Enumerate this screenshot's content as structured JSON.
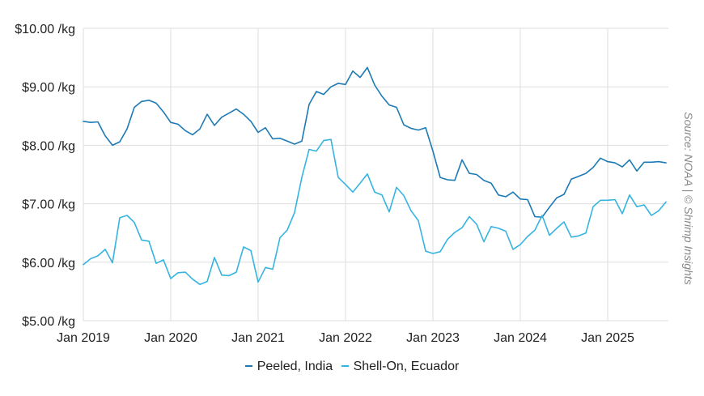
{
  "source_note": "Source: NOAA | © Shrimp Insights",
  "colors": {
    "peeled_india": "#1d7ab5",
    "shell_on_ecuador": "#35b4e0",
    "grid": "#dddddd"
  },
  "chart_data": {
    "type": "line",
    "title": "",
    "xlabel": "",
    "ylabel": "",
    "grid": true,
    "legend_position": "bottom",
    "ylim": [
      5,
      10
    ],
    "yticks": [
      {
        "value": 5,
        "label": "$5.00 /kg"
      },
      {
        "value": 6,
        "label": "$6.00 /kg"
      },
      {
        "value": 7,
        "label": "$7.00 /kg"
      },
      {
        "value": 8,
        "label": "$8.00 /kg"
      },
      {
        "value": 9,
        "label": "$9.00 /kg"
      },
      {
        "value": 10,
        "label": "$10.00 /kg"
      }
    ],
    "x_start": "Jan 2019",
    "x_end": "Aug 2025",
    "xticks": [
      "Jan 2019",
      "Jan 2020",
      "Jan 2021",
      "Jan 2022",
      "Jan 2023",
      "Jan 2024",
      "Jan 2025"
    ],
    "series": [
      {
        "name": "Peeled, India",
        "values": [
          8.41,
          8.39,
          8.4,
          8.16,
          8.0,
          8.06,
          8.28,
          8.65,
          8.75,
          8.77,
          8.72,
          8.57,
          8.39,
          8.36,
          8.25,
          8.18,
          8.28,
          8.53,
          8.34,
          8.48,
          8.55,
          8.62,
          8.53,
          8.41,
          8.22,
          8.3,
          8.11,
          8.12,
          8.07,
          8.02,
          8.07,
          8.7,
          8.92,
          8.87,
          9.0,
          9.06,
          9.04,
          9.27,
          9.16,
          9.33,
          9.03,
          8.84,
          8.69,
          8.65,
          8.35,
          8.29,
          8.26,
          8.3,
          7.9,
          7.45,
          7.41,
          7.4,
          7.75,
          7.52,
          7.5,
          7.4,
          7.35,
          7.15,
          7.12,
          7.2,
          7.08,
          7.07,
          6.78,
          6.77,
          6.94,
          7.1,
          7.16,
          7.42,
          7.47,
          7.52,
          7.62,
          7.78,
          7.72,
          7.7,
          7.63,
          7.75,
          7.56,
          7.71,
          7.71,
          7.72,
          7.7
        ]
      },
      {
        "name": "Shell-On, Ecuador",
        "values": [
          5.96,
          6.06,
          6.11,
          6.22,
          5.99,
          6.76,
          6.8,
          6.68,
          6.38,
          6.36,
          5.98,
          6.04,
          5.72,
          5.82,
          5.83,
          5.71,
          5.62,
          5.67,
          6.08,
          5.78,
          5.77,
          5.83,
          6.26,
          6.2,
          5.66,
          5.91,
          5.88,
          6.42,
          6.55,
          6.85,
          7.45,
          7.93,
          7.9,
          8.08,
          8.1,
          7.45,
          7.33,
          7.2,
          7.35,
          7.51,
          7.2,
          7.15,
          6.86,
          7.28,
          7.14,
          6.88,
          6.71,
          6.19,
          6.15,
          6.18,
          6.39,
          6.51,
          6.59,
          6.78,
          6.65,
          6.35,
          6.61,
          6.58,
          6.53,
          6.22,
          6.3,
          6.44,
          6.55,
          6.8,
          6.46,
          6.58,
          6.69,
          6.43,
          6.45,
          6.5,
          6.95,
          7.06,
          7.06,
          7.07,
          6.83,
          7.15,
          6.95,
          6.98,
          6.8,
          6.88,
          7.03
        ]
      }
    ]
  }
}
